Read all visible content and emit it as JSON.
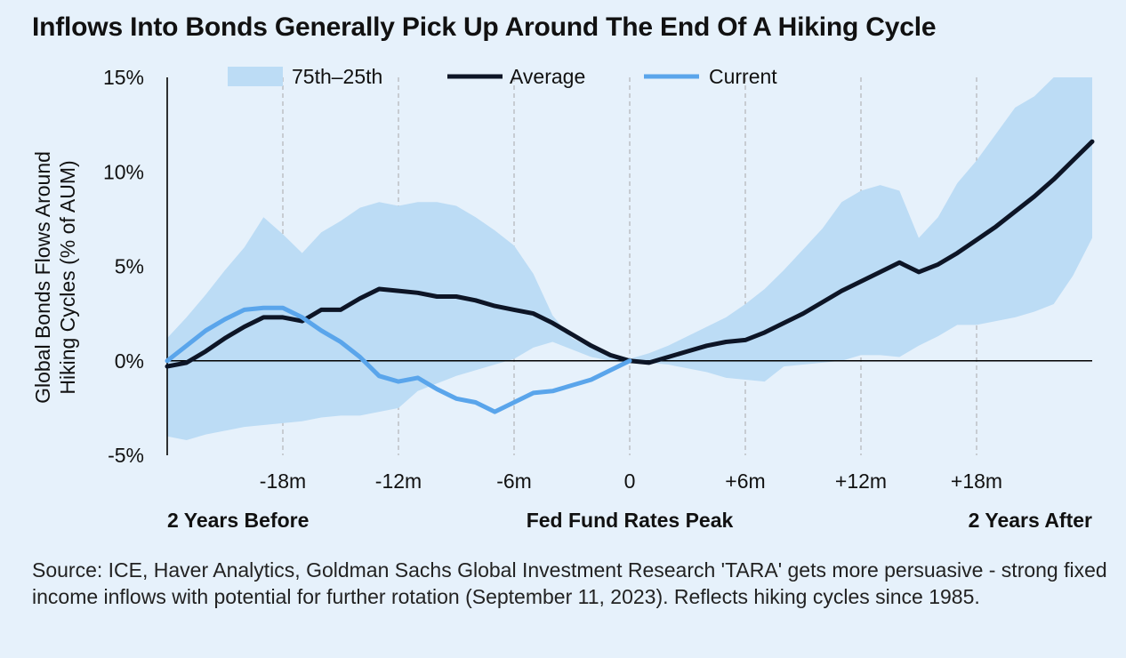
{
  "title": "Inflows Into Bonds Generally Pick Up Around The End Of A Hiking Cycle",
  "source": "Source: ICE, Haver Analytics, Goldman Sachs Global Investment Research 'TARA' gets more persuasive - strong fixed income inflows with potential for further rotation (September 11, 2023). Reflects hiking cycles since 1985.",
  "colors": {
    "background": "#e6f1fb",
    "band": "#bcdcf5",
    "average": "#0d1526",
    "current": "#5aa5eb",
    "grid": "#a8a8a8"
  },
  "chart_data": {
    "type": "line",
    "ylabel": "Global Bonds Flows Around Hiking Cycles (% of AUM)",
    "xlabel": "",
    "xlim": [
      -24,
      24
    ],
    "ylim": [
      -5,
      15
    ],
    "y_ticks": [
      -5,
      0,
      5,
      10,
      15
    ],
    "y_tick_labels": [
      "-5%",
      "0%",
      "5%",
      "10%",
      "15%"
    ],
    "x_ticks": [
      -18,
      -12,
      -6,
      0,
      6,
      12,
      18
    ],
    "x_tick_labels": [
      "-18m",
      "-12m",
      "-6m",
      "0",
      "+6m",
      "+12m",
      "+18m"
    ],
    "x_gridlines": "dashed vertical at each x tick",
    "x_annotations": [
      {
        "x": -24,
        "align": "left",
        "label": "2 Years Before"
      },
      {
        "x": 0,
        "align": "center",
        "label": "Fed Fund Rates Peak"
      },
      {
        "x": 24,
        "align": "right",
        "label": "2 Years After"
      }
    ],
    "legend_position": "top",
    "legend": [
      "75th–25th",
      "Average",
      "Current"
    ],
    "band": {
      "name": "75th–25th",
      "x": [
        -24,
        -23,
        -22,
        -21,
        -20,
        -19,
        -18,
        -17,
        -16,
        -15,
        -14,
        -13,
        -12,
        -11,
        -10,
        -9,
        -8,
        -7,
        -6,
        -5,
        -4,
        -3,
        -2,
        -1,
        0,
        1,
        2,
        3,
        4,
        5,
        6,
        7,
        8,
        9,
        10,
        11,
        12,
        13,
        14,
        15,
        16,
        17,
        18,
        19,
        20,
        21,
        22,
        23,
        24
      ],
      "upper": [
        1.2,
        2.3,
        3.5,
        4.8,
        6.0,
        7.6,
        6.7,
        5.7,
        6.8,
        7.4,
        8.1,
        8.4,
        8.2,
        8.4,
        8.4,
        8.2,
        7.6,
        6.9,
        6.1,
        4.6,
        2.4,
        1.2,
        0.7,
        0.3,
        0.1,
        0.4,
        0.8,
        1.3,
        1.8,
        2.3,
        3.0,
        3.8,
        4.8,
        5.9,
        7.0,
        8.4,
        9.0,
        9.3,
        9.0,
        6.5,
        7.6,
        9.4,
        10.6,
        12.0,
        13.4,
        14.0,
        15.0,
        15.0,
        15.0
      ],
      "lower": [
        -4.0,
        -4.2,
        -3.9,
        -3.7,
        -3.5,
        -3.4,
        -3.3,
        -3.2,
        -3.0,
        -2.9,
        -2.9,
        -2.7,
        -2.5,
        -1.6,
        -1.2,
        -0.8,
        -0.5,
        -0.2,
        0.1,
        0.7,
        1.0,
        0.6,
        0.2,
        0.0,
        -0.1,
        -0.1,
        -0.2,
        -0.4,
        -0.6,
        -0.9,
        -1.0,
        -1.1,
        -0.3,
        -0.2,
        -0.1,
        0.0,
        0.3,
        0.3,
        0.2,
        0.8,
        1.3,
        1.9,
        1.9,
        2.1,
        2.3,
        2.6,
        3.0,
        4.5,
        6.5
      ]
    },
    "series": [
      {
        "name": "Average",
        "x": [
          -24,
          -23,
          -22,
          -21,
          -20,
          -19,
          -18,
          -17,
          -16,
          -15,
          -14,
          -13,
          -12,
          -11,
          -10,
          -9,
          -8,
          -7,
          -6,
          -5,
          -4,
          -3,
          -2,
          -1,
          0,
          1,
          2,
          3,
          4,
          5,
          6,
          7,
          8,
          9,
          10,
          11,
          12,
          13,
          14,
          15,
          16,
          17,
          18,
          19,
          20,
          21,
          22,
          23,
          24
        ],
        "values": [
          -0.3,
          -0.1,
          0.5,
          1.2,
          1.8,
          2.3,
          2.3,
          2.1,
          2.7,
          2.7,
          3.3,
          3.8,
          3.7,
          3.6,
          3.4,
          3.4,
          3.2,
          2.9,
          2.7,
          2.5,
          2.0,
          1.4,
          0.8,
          0.3,
          0.0,
          -0.1,
          0.2,
          0.5,
          0.8,
          1.0,
          1.1,
          1.5,
          2.0,
          2.5,
          3.1,
          3.7,
          4.2,
          4.7,
          5.2,
          4.7,
          5.1,
          5.7,
          6.4,
          7.1,
          7.9,
          8.7,
          9.6,
          10.6,
          11.6
        ]
      },
      {
        "name": "Current",
        "x": [
          -24,
          -23,
          -22,
          -21,
          -20,
          -19,
          -18,
          -17,
          -16,
          -15,
          -14,
          -13,
          -12,
          -11,
          -10,
          -9,
          -8,
          -7,
          -6,
          -5,
          -4,
          -3,
          -2,
          -1,
          0
        ],
        "values": [
          0.0,
          0.8,
          1.6,
          2.2,
          2.7,
          2.8,
          2.8,
          2.3,
          1.6,
          1.0,
          0.2,
          -0.8,
          -1.1,
          -0.9,
          -1.5,
          -2.0,
          -2.2,
          -2.7,
          -2.2,
          -1.7,
          -1.6,
          -1.3,
          -1.0,
          -0.5,
          0.0
        ]
      }
    ]
  }
}
